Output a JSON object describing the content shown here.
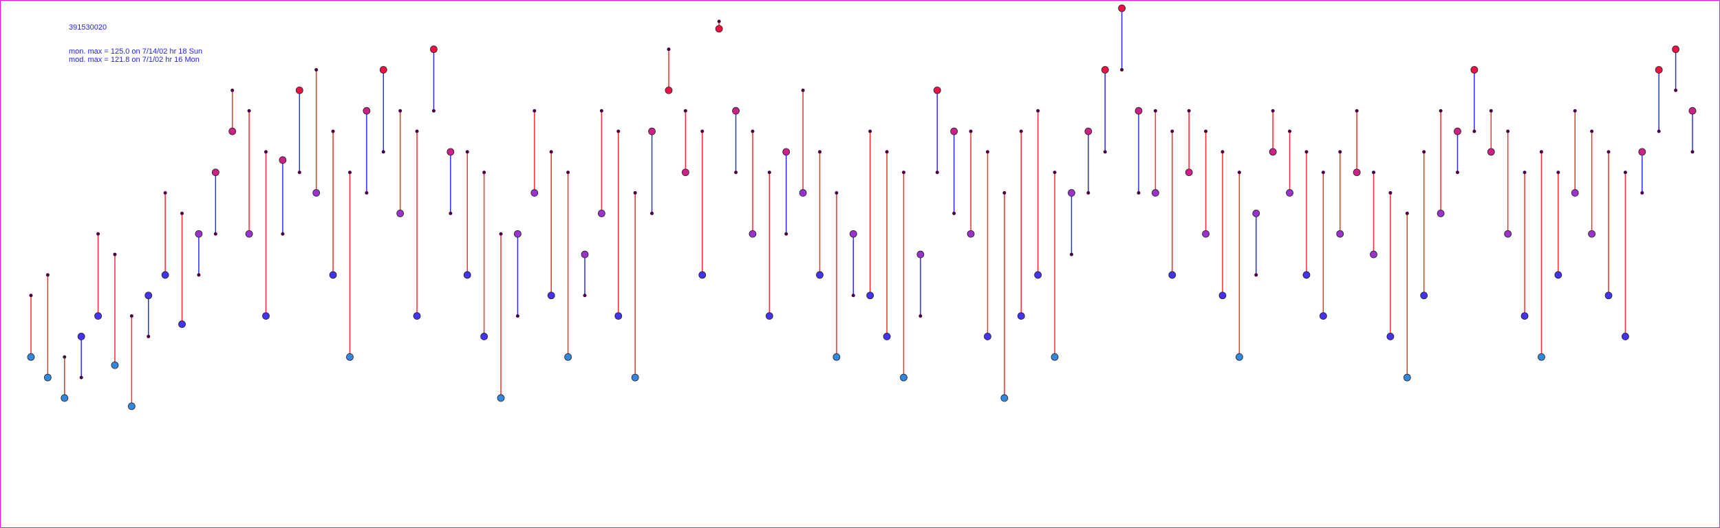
{
  "chart_data": {
    "type": "pairs",
    "title": "391530020",
    "annotations": [
      "mon. max =  125.0 on 7/14/02 hr 18 Sun",
      "mod. max =  121.8 on 7/1/02 hr 16 Mon"
    ],
    "series": [
      {
        "values": [
          40,
          35,
          30,
          45,
          50,
          38,
          28,
          55,
          60,
          48,
          70,
          85,
          95,
          70,
          50,
          88,
          105,
          80,
          60,
          40,
          100,
          110,
          75,
          50,
          115,
          90,
          60,
          45,
          30,
          70,
          80,
          55,
          40,
          65,
          75,
          50,
          35,
          95,
          105,
          85,
          60,
          120,
          100,
          70,
          50,
          90,
          80,
          60,
          40,
          70,
          55,
          45,
          35,
          65,
          105,
          95,
          70,
          45,
          30,
          50,
          60,
          40,
          80,
          95,
          110,
          125,
          100,
          80,
          60,
          85,
          70,
          55,
          40,
          75,
          90,
          80,
          60,
          50,
          70,
          85,
          65,
          45,
          35,
          55,
          75,
          95,
          110,
          90,
          70,
          50,
          40,
          60,
          80,
          70,
          55,
          45,
          90,
          110,
          115,
          100
        ]
      },
      {
        "values": [
          55,
          60,
          40,
          35,
          70,
          65,
          50,
          45,
          80,
          75,
          60,
          70,
          105,
          100,
          90,
          70,
          85,
          110,
          95,
          85,
          80,
          90,
          100,
          95,
          100,
          75,
          90,
          85,
          70,
          50,
          100,
          90,
          85,
          55,
          100,
          95,
          80,
          75,
          115,
          100,
          95,
          121.8,
          85,
          95,
          85,
          70,
          105,
          90,
          80,
          55,
          95,
          90,
          85,
          50,
          85,
          75,
          95,
          90,
          80,
          95,
          100,
          85,
          65,
          80,
          90,
          110,
          80,
          100,
          95,
          100,
          95,
          90,
          85,
          60,
          100,
          95,
          90,
          85,
          90,
          100,
          85,
          80,
          75,
          90,
          100,
          85,
          95,
          100,
          95,
          85,
          90,
          85,
          100,
          95,
          90,
          85,
          80,
          95,
          105,
          90
        ],
        "color": "#4a0040"
      }
    ],
    "over_color": "#ff2a2a",
    "under_color": "#2a2aff",
    "point_colors": [
      "#33dd33",
      "#3388dd",
      "#4433ee",
      "#9933cc",
      "#cc2288",
      "#ee1144"
    ],
    "text_color": "#2222ee",
    "border_color": "#ff00ff"
  }
}
